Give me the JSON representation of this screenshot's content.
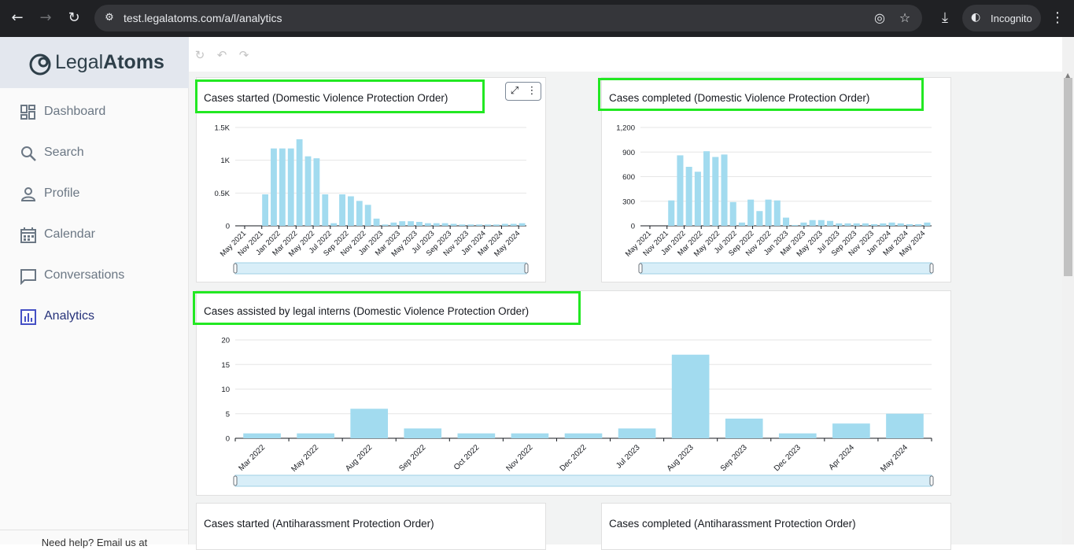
{
  "browser": {
    "url": "test.legalatoms.com/a/l/analytics",
    "incognito_label": "Incognito"
  },
  "sidebar": {
    "logo_light": "Legal",
    "logo_bold": "Atoms",
    "items": [
      {
        "label": "Dashboard",
        "icon": "dashboard-icon"
      },
      {
        "label": "Search",
        "icon": "search-icon"
      },
      {
        "label": "Profile",
        "icon": "person-icon"
      },
      {
        "label": "Calendar",
        "icon": "calendar-icon"
      },
      {
        "label": "Conversations",
        "icon": "chat-icon"
      },
      {
        "label": "Analytics",
        "icon": "bar-chart-icon",
        "active": true
      }
    ],
    "help_text": "Need help? Email us at"
  },
  "colors": {
    "bar": "#a2dbef",
    "highlight": "#22e822",
    "active_nav": "#26327a"
  },
  "panels": {
    "started_dvpo": {
      "title": "Cases started (Domestic Violence Protection Order)"
    },
    "completed_dvpo": {
      "title": "Cases completed (Domestic Violence Protection Order)"
    },
    "interns_dvpo": {
      "title": "Cases assisted by legal interns (Domestic Violence Protection Order)"
    },
    "started_ahpo": {
      "title": "Cases started (Antiharassment Protection Order)"
    },
    "completed_ahpo": {
      "title": "Cases completed (Antiharassment Protection Order)"
    }
  },
  "chart_data": [
    {
      "id": "started_dvpo",
      "type": "bar",
      "title": "Cases started (Domestic Violence Protection Order)",
      "ytick_labels": [
        "0",
        "0.5K",
        "1K",
        "1.5K"
      ],
      "ylim": [
        0,
        1500
      ],
      "xtick_labels": [
        "May 2021",
        "Nov 2021",
        "Jan 2022",
        "Mar 2022",
        "May 2022",
        "Jul 2022",
        "Sep 2022",
        "Nov 2022",
        "Jan 2023",
        "Mar 2023",
        "May 2023",
        "Jul 2023",
        "Sep 2023",
        "Nov 2023",
        "Jan 2024",
        "Mar 2024",
        "May 2024"
      ],
      "values": [
        0,
        0,
        0,
        480,
        1180,
        1180,
        1180,
        1320,
        1060,
        1030,
        480,
        40,
        480,
        450,
        380,
        320,
        110,
        20,
        50,
        70,
        70,
        60,
        40,
        40,
        40,
        30,
        20,
        20,
        20,
        20,
        20,
        30,
        30,
        40
      ],
      "grid": true
    },
    {
      "id": "completed_dvpo",
      "type": "bar",
      "title": "Cases completed (Domestic Violence Protection Order)",
      "ytick_labels": [
        "0",
        "300",
        "600",
        "900",
        "1,200"
      ],
      "ylim": [
        0,
        1200
      ],
      "xtick_labels": [
        "May 2021",
        "Nov 2021",
        "Jan 2022",
        "Mar 2022",
        "May 2022",
        "Jul 2022",
        "Sep 2022",
        "Nov 2022",
        "Jan 2023",
        "Mar 2023",
        "May 2023",
        "Jul 2023",
        "Sep 2023",
        "Nov 2023",
        "Jan 2024",
        "Mar 2024",
        "May 2024"
      ],
      "values": [
        0,
        0,
        0,
        310,
        860,
        720,
        660,
        910,
        840,
        870,
        290,
        40,
        320,
        180,
        320,
        310,
        100,
        10,
        40,
        70,
        70,
        60,
        30,
        30,
        30,
        30,
        20,
        30,
        40,
        30,
        20,
        20,
        40
      ],
      "grid": true
    },
    {
      "id": "interns_dvpo",
      "type": "bar",
      "title": "Cases assisted by legal interns (Domestic Violence Protection Order)",
      "categories": [
        "Mar 2022",
        "May 2022",
        "Aug 2022",
        "Sep 2022",
        "Oct 2022",
        "Nov 2022",
        "Dec 2022",
        "Jul 2023",
        "Aug 2023",
        "Sep 2023",
        "Dec 2023",
        "Apr 2024",
        "May 2024"
      ],
      "values": [
        1,
        1,
        6,
        2,
        1,
        1,
        1,
        2,
        17,
        4,
        1,
        3,
        5
      ],
      "ytick_labels": [
        "0",
        "5",
        "10",
        "15",
        "20"
      ],
      "ylim": [
        0,
        20
      ],
      "grid": true
    }
  ]
}
